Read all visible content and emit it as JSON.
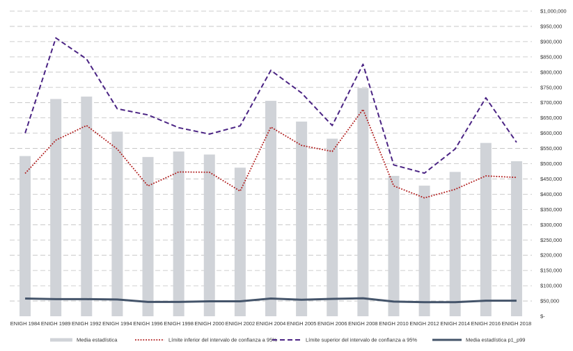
{
  "chart_data": {
    "type": "bar",
    "categories": [
      "ENIGH 1984",
      "ENIGH 1989",
      "ENIGH 1992",
      "ENIGH 1994",
      "ENIGH 1996",
      "ENIGH 1998",
      "ENIGH 2000",
      "ENIGH 2002",
      "ENIGH 2004",
      "ENIGH 2005",
      "ENIGH 2006",
      "ENIGH 2008",
      "ENIGH 2010",
      "ENIGH 2012",
      "ENIGH 2014",
      "ENIGH 2016",
      "ENIGH 2018"
    ],
    "series": [
      {
        "name": "Media estadística",
        "kind": "bar",
        "color": "#d0d3d8",
        "values": [
          525000,
          712000,
          720000,
          605000,
          522000,
          540000,
          530000,
          487000,
          706000,
          638000,
          582000,
          748000,
          460000,
          428000,
          473000,
          568000,
          508000
        ]
      },
      {
        "name": "Límite inferior del intervalo de confianza a 95%",
        "kind": "line",
        "style": "dotted",
        "color": "#b01c1c",
        "values": [
          468000,
          577000,
          625000,
          548000,
          427000,
          473000,
          472000,
          410000,
          620000,
          560000,
          540000,
          678000,
          427000,
          388000,
          416000,
          460000,
          455000
        ]
      },
      {
        "name": "Límite superior del intervalo de confianza a 95%",
        "kind": "line",
        "style": "dashed",
        "color": "#4b2484",
        "values": [
          600000,
          912000,
          843000,
          680000,
          660000,
          618000,
          597000,
          624000,
          806000,
          732000,
          625000,
          826000,
          496000,
          469000,
          548000,
          716000,
          570000
        ]
      },
      {
        "name": "Media estadística p1_p99",
        "kind": "line",
        "style": "solid",
        "color": "#44546a",
        "values": [
          58000,
          56000,
          56000,
          55000,
          47000,
          47000,
          49000,
          49000,
          58000,
          54000,
          57000,
          59000,
          48000,
          46000,
          46000,
          51000,
          51000
        ]
      }
    ],
    "y_ticks": [
      "$-",
      "$50,000",
      "$100,000",
      "$150,000",
      "$200,000",
      "$250,000",
      "$300,000",
      "$350,000",
      "$400,000",
      "$450,000",
      "$500,000",
      "$550,000",
      "$600,000",
      "$650,000",
      "$700,000",
      "$750,000",
      "$800,000",
      "$850,000",
      "$900,000",
      "$950,000",
      "$1,000,000"
    ],
    "ylim": [
      0,
      1000000
    ],
    "y_axis_side": "right",
    "grid": true,
    "legend_position": "bottom",
    "title": "",
    "xlabel": "",
    "ylabel": ""
  }
}
